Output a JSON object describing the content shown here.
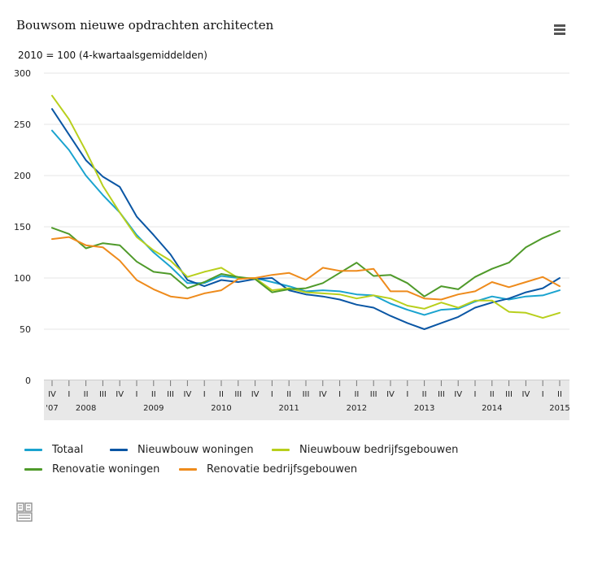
{
  "header": {
    "title": "Bouwsom nieuwe opdrachten architecten",
    "subtitle": "2010 = 100 (4-kwartaalsgemiddelden)",
    "menu_icon": "hamburger-menu-icon"
  },
  "logo": {
    "icon": "cbs-logo-icon"
  },
  "chart_data": {
    "type": "line",
    "title": "Bouwsom nieuwe opdrachten architecten",
    "ylabel": "",
    "xlabel": "",
    "ylim": [
      0,
      300
    ],
    "yticks": [
      0,
      50,
      100,
      150,
      200,
      250,
      300
    ],
    "grid": true,
    "legend_position": "bottom",
    "quarter_labels": [
      "IV",
      "I",
      "II",
      "III",
      "IV",
      "I",
      "II",
      "III",
      "IV",
      "I",
      "II",
      "III",
      "IV",
      "I",
      "II",
      "III",
      "IV",
      "I",
      "II",
      "III",
      "IV",
      "I",
      "II",
      "III",
      "IV",
      "I",
      "II",
      "III",
      "IV",
      "I",
      "II"
    ],
    "year_labels": [
      {
        "label": "'07",
        "quarter_index": 0
      },
      {
        "label": "2008",
        "quarter_index": 2
      },
      {
        "label": "2009",
        "quarter_index": 6
      },
      {
        "label": "2010",
        "quarter_index": 10
      },
      {
        "label": "2011",
        "quarter_index": 14
      },
      {
        "label": "2012",
        "quarter_index": 18
      },
      {
        "label": "2013",
        "quarter_index": 22
      },
      {
        "label": "2014",
        "quarter_index": 26
      },
      {
        "label": "2015",
        "quarter_index": 30
      }
    ],
    "series": [
      {
        "name": "Totaal",
        "color": "#1aa3cf",
        "values": [
          244,
          225,
          200,
          181,
          164,
          142,
          125,
          111,
          95,
          95,
          102,
          100,
          100,
          96,
          92,
          87,
          88,
          87,
          84,
          83,
          75,
          69,
          64,
          69,
          70,
          77,
          82,
          79,
          82,
          83,
          88
        ]
      },
      {
        "name": "Nieuwbouw woningen",
        "color": "#0a56a4",
        "values": [
          265,
          240,
          215,
          199,
          189,
          160,
          142,
          123,
          98,
          92,
          98,
          96,
          99,
          100,
          88,
          84,
          82,
          79,
          74,
          71,
          63,
          56,
          50,
          56,
          62,
          71,
          76,
          80,
          86,
          90,
          100
        ]
      },
      {
        "name": "Nieuwbouw bedrijfsgebouwen",
        "color": "#b8cf1c",
        "values": [
          278,
          255,
          224,
          190,
          164,
          140,
          127,
          117,
          101,
          106,
          110,
          100,
          100,
          88,
          90,
          86,
          85,
          84,
          80,
          83,
          80,
          73,
          70,
          76,
          71,
          78,
          78,
          67,
          66,
          61,
          66
        ]
      },
      {
        "name": "Renovatie woningen",
        "color": "#4f9a2a",
        "values": [
          149,
          143,
          129,
          134,
          132,
          116,
          106,
          104,
          90,
          96,
          104,
          101,
          99,
          86,
          89,
          90,
          95,
          105,
          115,
          102,
          103,
          95,
          82,
          92,
          89,
          101,
          109,
          115,
          130,
          139,
          146
        ]
      },
      {
        "name": "Renovatie bedrijfsgebouwen",
        "color": "#ee8b1c",
        "values": [
          138,
          140,
          132,
          130,
          117,
          98,
          89,
          82,
          80,
          85,
          88,
          99,
          100,
          103,
          105,
          98,
          110,
          107,
          107,
          109,
          87,
          87,
          80,
          79,
          84,
          87,
          96,
          91,
          96,
          101,
          92
        ]
      }
    ]
  }
}
